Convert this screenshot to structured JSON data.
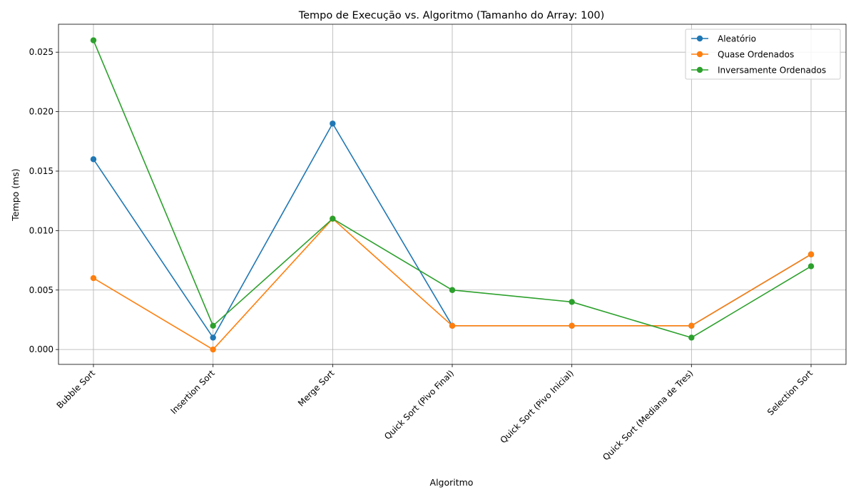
{
  "chart_data": {
    "type": "line",
    "title": "Tempo de Execução vs. Algoritmo (Tamanho do Array: 100)",
    "xlabel": "Algoritmo",
    "ylabel": "Tempo (ms)",
    "categories": [
      "Bubble Sort",
      "Insertion Sort",
      "Merge Sort",
      "Quick Sort (Pivo Final)",
      "Quick Sort (Pivo Inicial)",
      "Quick Sort (Mediana de Tres)",
      "Selection Sort"
    ],
    "ylim": [
      -0.00125,
      0.02735
    ],
    "yticks": [
      0.0,
      0.005,
      0.01,
      0.015,
      0.02,
      0.025
    ],
    "ytick_labels": [
      "0.000",
      "0.005",
      "0.010",
      "0.015",
      "0.020",
      "0.025"
    ],
    "grid": true,
    "legend_position": "top-right",
    "series": [
      {
        "name": "Aleatório",
        "color": "#1f77b4",
        "values": [
          0.016,
          0.001,
          0.019,
          0.002,
          0.002,
          0.002,
          0.008
        ]
      },
      {
        "name": "Quase Ordenados",
        "color": "#ff7f0e",
        "values": [
          0.006,
          0.0,
          0.011,
          0.002,
          0.002,
          0.002,
          0.008
        ]
      },
      {
        "name": "Inversamente Ordenados",
        "color": "#2ca02c",
        "values": [
          0.026,
          0.002,
          0.011,
          0.005,
          0.004,
          0.001,
          0.007
        ]
      }
    ]
  }
}
